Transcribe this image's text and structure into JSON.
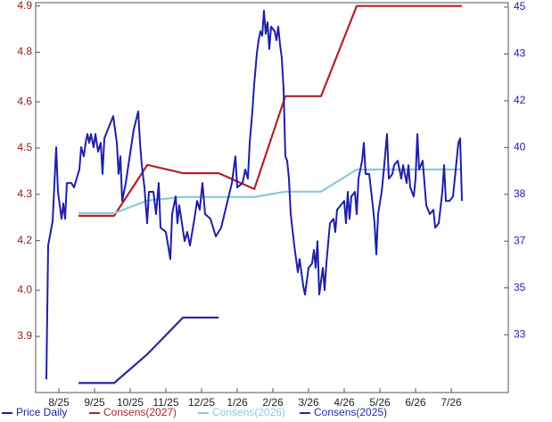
{
  "chart_data": {
    "type": "line",
    "xlim": [
      -0.65,
      12.6
    ],
    "xticks": [
      {
        "value": 0,
        "label": "8/25"
      },
      {
        "value": 1,
        "label": "9/25"
      },
      {
        "value": 2,
        "label": "10/25"
      },
      {
        "value": 3,
        "label": "11/25"
      },
      {
        "value": 4,
        "label": "12/25"
      },
      {
        "value": 5,
        "label": "1/26"
      },
      {
        "value": 6,
        "label": "2/26"
      },
      {
        "value": 7,
        "label": "3/26"
      },
      {
        "value": 8,
        "label": "4/26"
      },
      {
        "value": 9,
        "label": "5/26"
      },
      {
        "value": 10,
        "label": "6/26"
      },
      {
        "value": 11,
        "label": "7/26"
      }
    ],
    "ylim": [
      3.73,
      4.91
    ],
    "yticks": [
      {
        "value": 4.9,
        "label": "4.9"
      },
      {
        "value": 4.76,
        "label": "4.8"
      },
      {
        "value": 4.61,
        "label": "4.6"
      },
      {
        "value": 4.47,
        "label": "4.5"
      },
      {
        "value": 4.33,
        "label": "4.3"
      },
      {
        "value": 4.19,
        "label": "4.2"
      },
      {
        "value": 4.04,
        "label": "4.0"
      },
      {
        "value": 3.9,
        "label": "3.9"
      }
    ],
    "y2lim": [
      31,
      45.16
    ],
    "y2ticks": [
      45,
      {
        "value": 43.3,
        "label": "43"
      },
      {
        "value": 41.6,
        "label": "42"
      },
      {
        "value": 39.9,
        "label": "40"
      },
      {
        "value": 38.2,
        "label": "38"
      },
      {
        "value": 36.5,
        "label": "37"
      },
      {
        "value": 34.8,
        "label": "35"
      },
      {
        "value": 33.1,
        "label": "33"
      }
    ],
    "grid": false,
    "legend": "bottom",
    "series": [
      {
        "name": "Price Daily",
        "color": "#1f1fa8",
        "axis": "y2",
        "x": [
          -0.35,
          -0.3,
          -0.175,
          -0.075,
          -0.025,
          0.075,
          0.125,
          0.175,
          0.225,
          0.35,
          0.425,
          0.575,
          0.625,
          0.7,
          0.75,
          0.8,
          0.85,
          0.9,
          0.975,
          1.025,
          1.1,
          1.175,
          1.225,
          1.275,
          1.375,
          1.525,
          1.625,
          1.675,
          1.725,
          1.775,
          1.875,
          1.95,
          2.1,
          2.225,
          2.275,
          2.325,
          2.4,
          2.475,
          2.525,
          2.65,
          2.725,
          2.8,
          2.85,
          3.0,
          3.125,
          3.175,
          3.275,
          3.325,
          3.375,
          3.525,
          3.6,
          3.675,
          3.8,
          3.875,
          3.95,
          4.025,
          4.1,
          4.25,
          4.4,
          4.55,
          4.7,
          4.85,
          4.95,
          5.0,
          5.15,
          5.225,
          5.3,
          5.35,
          5.425,
          5.475,
          5.55,
          5.6,
          5.65,
          5.7,
          5.75,
          5.8,
          5.85,
          5.9,
          5.95,
          6.05,
          6.1,
          6.15,
          6.2,
          6.25,
          6.3,
          6.35,
          6.4,
          6.45,
          6.5,
          6.6,
          6.7,
          6.75,
          6.85,
          6.9,
          7.0,
          7.1,
          7.15,
          7.2,
          7.25,
          7.3,
          7.4,
          7.45,
          7.5,
          7.6,
          7.7,
          7.75,
          7.8,
          7.9,
          8.0,
          8.05,
          8.1,
          8.15,
          8.2,
          8.3,
          8.35,
          8.4,
          8.5,
          8.55,
          8.6,
          8.7,
          8.8,
          8.85,
          8.9,
          8.95,
          9.05,
          9.1,
          9.2,
          9.25,
          9.35,
          9.4,
          9.5,
          9.6,
          9.65,
          9.75,
          9.8,
          9.85,
          9.95,
          10.0,
          10.05,
          10.1,
          10.2,
          10.3,
          10.4,
          10.5,
          10.55,
          10.65,
          10.75,
          10.8,
          10.85,
          10.95,
          11.05,
          11.15,
          11.2,
          11.25,
          11.3
        ],
        "values": [
          31.48,
          36.34,
          37.22,
          39.91,
          38.29,
          37.31,
          37.87,
          37.31,
          38.61,
          38.61,
          38.45,
          39.1,
          39.91,
          39.58,
          40.07,
          40.39,
          40.07,
          40.39,
          39.91,
          40.39,
          39.75,
          40.07,
          38.94,
          40.23,
          40.56,
          41.04,
          40.07,
          38.94,
          39.58,
          37.96,
          38.61,
          39.26,
          40.56,
          41.21,
          40.07,
          39.26,
          38.45,
          37.15,
          38.29,
          38.29,
          37.48,
          38.61,
          36.99,
          36.83,
          35.85,
          37.48,
          38.12,
          37.15,
          37.8,
          36.5,
          36.83,
          36.34,
          37.31,
          37.96,
          37.64,
          38.61,
          37.48,
          37.31,
          36.67,
          36.99,
          37.8,
          38.61,
          39.58,
          38.45,
          38.61,
          39.1,
          38.77,
          40.07,
          41.21,
          42.18,
          43.31,
          43.8,
          44.12,
          43.96,
          44.87,
          44.03,
          44.45,
          43.48,
          44.29,
          44.12,
          43.8,
          44.29,
          43.64,
          43.15,
          42.02,
          39.58,
          39.42,
          38.77,
          37.48,
          36.34,
          35.37,
          35.85,
          34.88,
          34.56,
          35.53,
          35.69,
          36.18,
          35.53,
          36.5,
          34.56,
          35.53,
          34.72,
          35.69,
          37.15,
          37.31,
          36.83,
          37.64,
          37.8,
          37.96,
          37.15,
          38.29,
          37.31,
          38.12,
          38.29,
          37.48,
          38.77,
          39.42,
          40.07,
          38.94,
          38.94,
          37.8,
          37.15,
          36.02,
          37.48,
          38.29,
          38.94,
          40.39,
          38.77,
          38.94,
          39.26,
          39.42,
          38.77,
          39.26,
          38.61,
          39.26,
          38.45,
          38.12,
          38.77,
          40.39,
          39.1,
          39.42,
          37.8,
          37.48,
          37.64,
          36.99,
          37.15,
          38.29,
          39.26,
          37.96,
          37.96,
          38.12,
          39.42,
          40.07,
          40.23,
          37.96
        ]
      },
      {
        "name": "Consens(2027)",
        "color": "#b3232b",
        "x": [
          0.55,
          1.55,
          2.48,
          3.48,
          4.48,
          5.48,
          6.35,
          7.35,
          8.35,
          11.3
        ],
        "values": [
          4.265,
          4.265,
          4.419,
          4.394,
          4.394,
          4.346,
          4.627,
          4.627,
          4.9,
          4.9
        ]
      },
      {
        "name": "Consens(2026)",
        "color": "#8cc8e0",
        "x": [
          0.55,
          1.55,
          2.48,
          3.48,
          4.48,
          5.48,
          6.35,
          7.35,
          8.35,
          11.3
        ],
        "values": [
          4.273,
          4.273,
          4.311,
          4.322,
          4.322,
          4.322,
          4.338,
          4.338,
          4.405,
          4.405
        ]
      },
      {
        "name": "Consens(2025)",
        "color": "#2a2aa0",
        "x": [
          0.55,
          1.55,
          2.48,
          3.48,
          4.48
        ],
        "values": [
          3.759,
          3.759,
          3.846,
          3.957,
          3.957
        ]
      }
    ]
  }
}
